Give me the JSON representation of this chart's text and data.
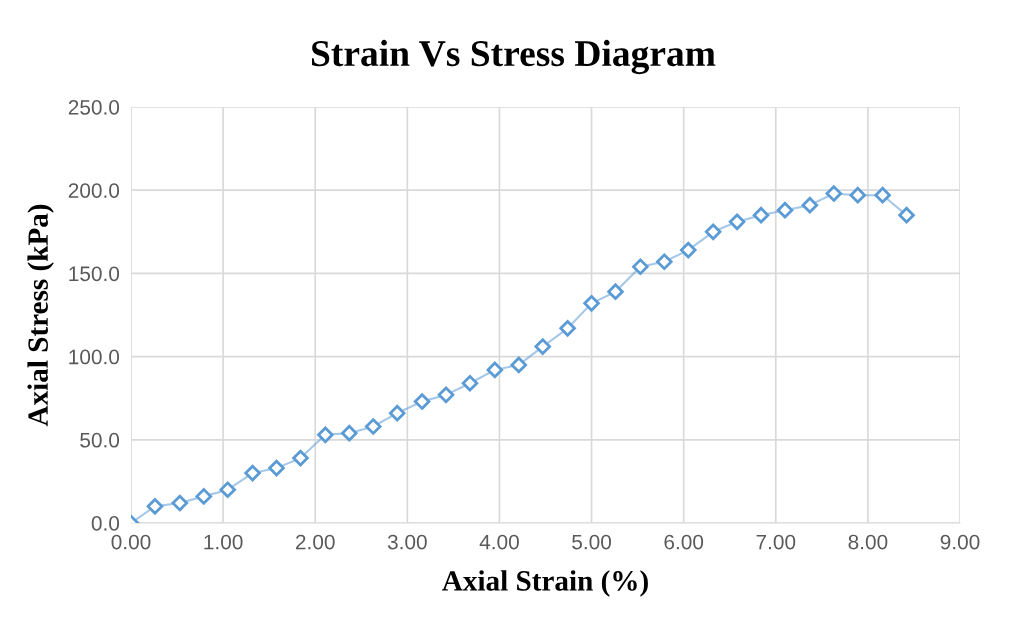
{
  "chart_data": {
    "type": "line",
    "title": "Strain Vs Stress Diagram",
    "xlabel": "Axial Strain (%)",
    "ylabel": "Axial Stress (kPa)",
    "x": [
      0,
      0.26,
      0.53,
      0.79,
      1.05,
      1.32,
      1.58,
      1.84,
      2.11,
      2.37,
      2.63,
      2.89,
      3.16,
      3.42,
      3.68,
      3.95,
      4.21,
      4.47,
      4.74,
      5.0,
      5.26,
      5.53,
      5.79,
      6.05,
      6.32,
      6.58,
      6.84,
      7.1,
      7.37,
      7.63,
      7.89,
      8.16,
      8.42
    ],
    "series": [
      {
        "color": "#5b9bd5",
        "values": [
          0,
          10,
          12,
          16,
          20,
          30,
          33,
          39,
          53,
          54,
          58,
          66,
          73,
          77,
          84,
          92,
          95,
          106,
          117,
          132,
          139,
          154,
          157,
          164,
          175,
          181,
          185,
          188,
          191,
          198,
          197,
          197,
          185
        ]
      }
    ],
    "marker": "diamond",
    "line_style": "solid",
    "grid": true,
    "legend": false,
    "xlim": [
      0,
      9
    ],
    "xticks": [
      {
        "value": 0,
        "label": "0.00"
      },
      {
        "value": 1,
        "label": "1.00"
      },
      {
        "value": 2,
        "label": "2.00"
      },
      {
        "value": 3,
        "label": "3.00"
      },
      {
        "value": 4,
        "label": "4.00"
      },
      {
        "value": 5,
        "label": "5.00"
      },
      {
        "value": 6,
        "label": "6.00"
      },
      {
        "value": 7,
        "label": "7.00"
      },
      {
        "value": 8,
        "label": "8.00"
      },
      {
        "value": 9,
        "label": "9.00"
      }
    ],
    "ylim": [
      0,
      250
    ],
    "yticks": [
      {
        "value": 0,
        "label": "0.0"
      },
      {
        "value": 50,
        "label": "50.0"
      },
      {
        "value": 100,
        "label": "100.0"
      },
      {
        "value": 150,
        "label": "150.0"
      },
      {
        "value": 200,
        "label": "200.0"
      },
      {
        "value": 250,
        "label": "250.0"
      }
    ]
  }
}
